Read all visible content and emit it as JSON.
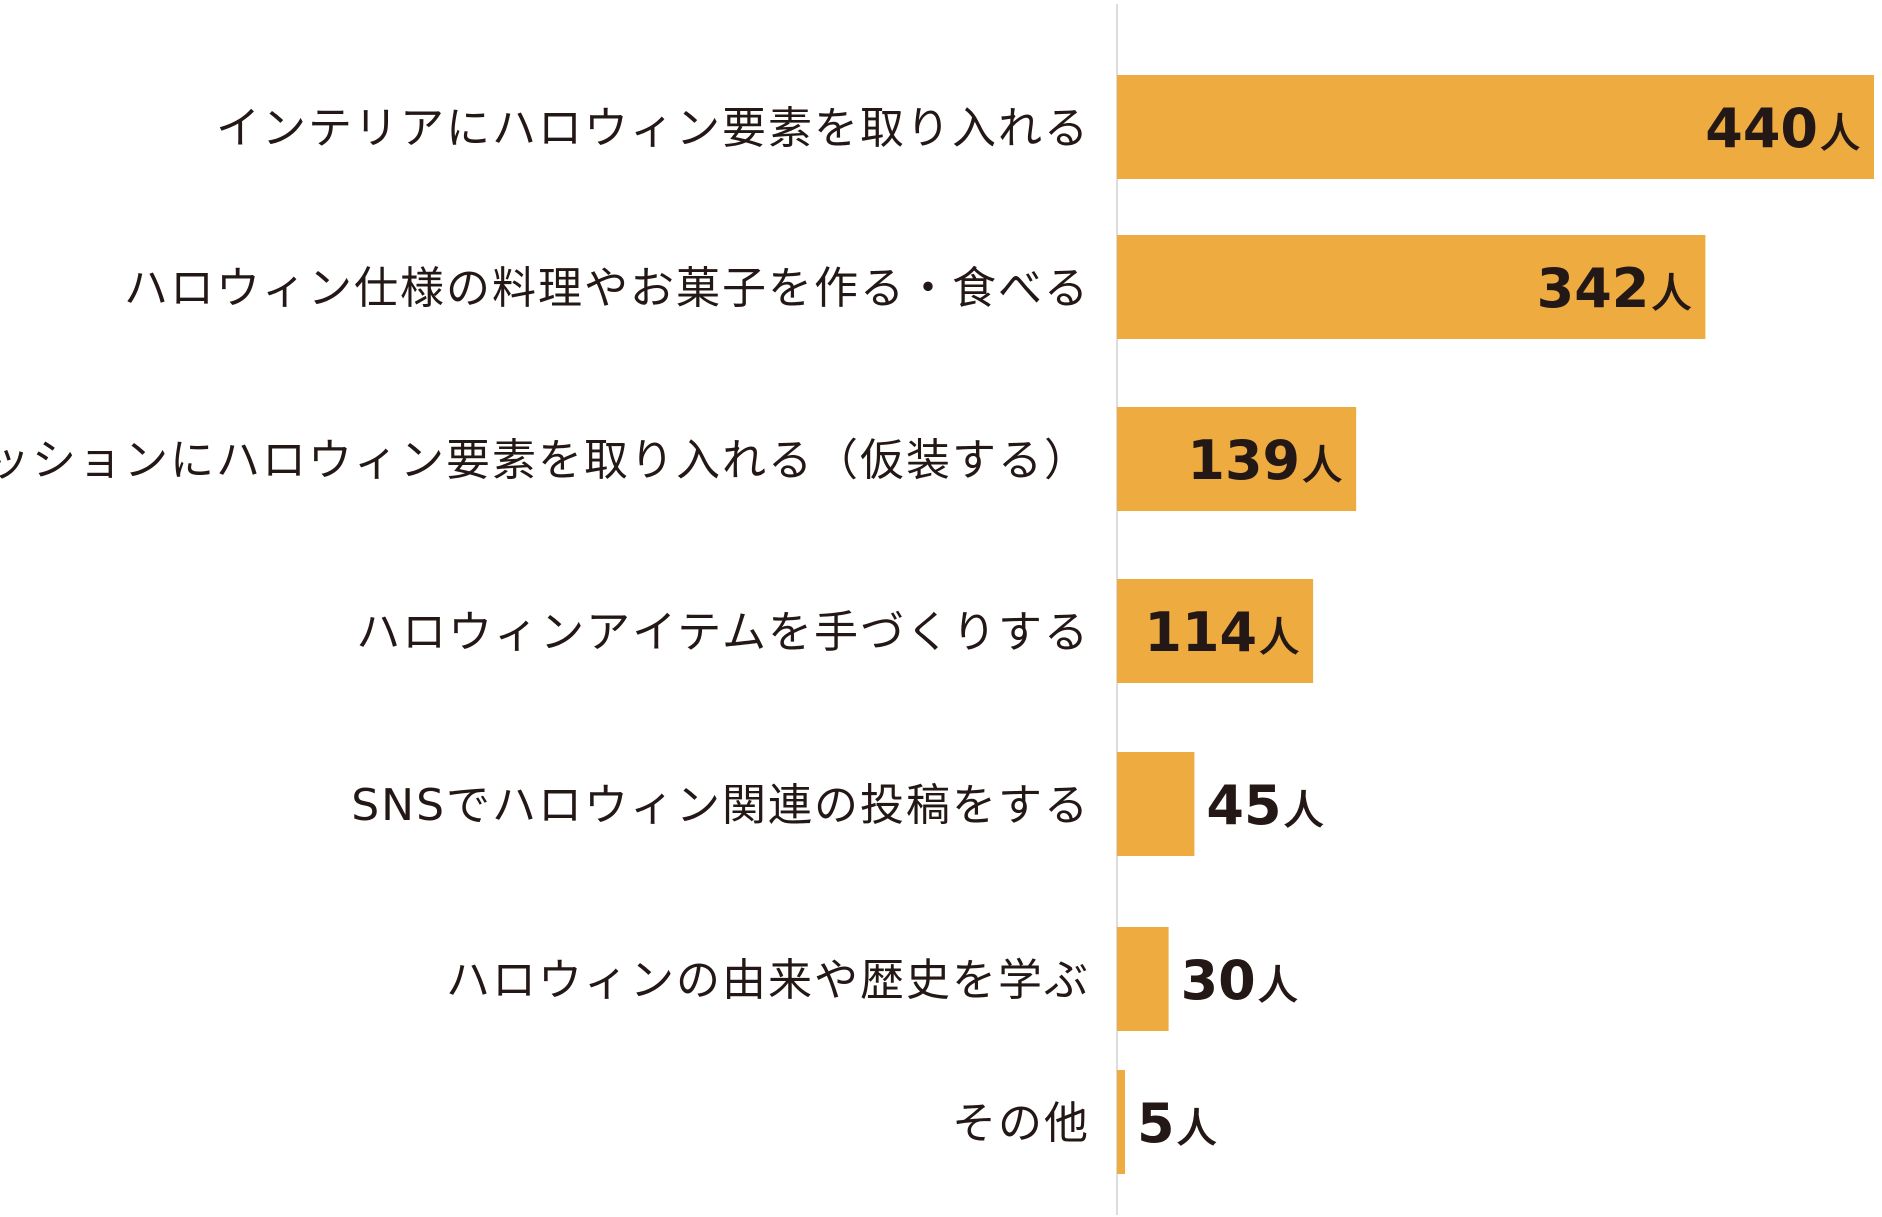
{
  "colors": {
    "bar": "#EDAB40",
    "text": "#231815",
    "axis": "#DCDCDC"
  },
  "chart_data": {
    "type": "bar",
    "orientation": "horizontal",
    "categories": [
      "インテリアにハロウィン要素を取り入れる",
      "ハロウィン仕様の料理やお菓子を作る・食べる",
      "ファッションにハロウィン要素を取り入れる（仮装する）",
      "ハロウィンアイテムを手づくりする",
      "SNSでハロウィン関連の投稿をする",
      "ハロウィンの由来や歴史を学ぶ",
      "その他"
    ],
    "values": [
      440,
      342,
      139,
      114,
      45,
      30,
      5
    ],
    "value_labels": [
      "440",
      "342",
      "139",
      "114",
      "45",
      "30",
      "5"
    ],
    "unit": "人",
    "xlim": [
      0,
      440
    ],
    "grid": false
  }
}
